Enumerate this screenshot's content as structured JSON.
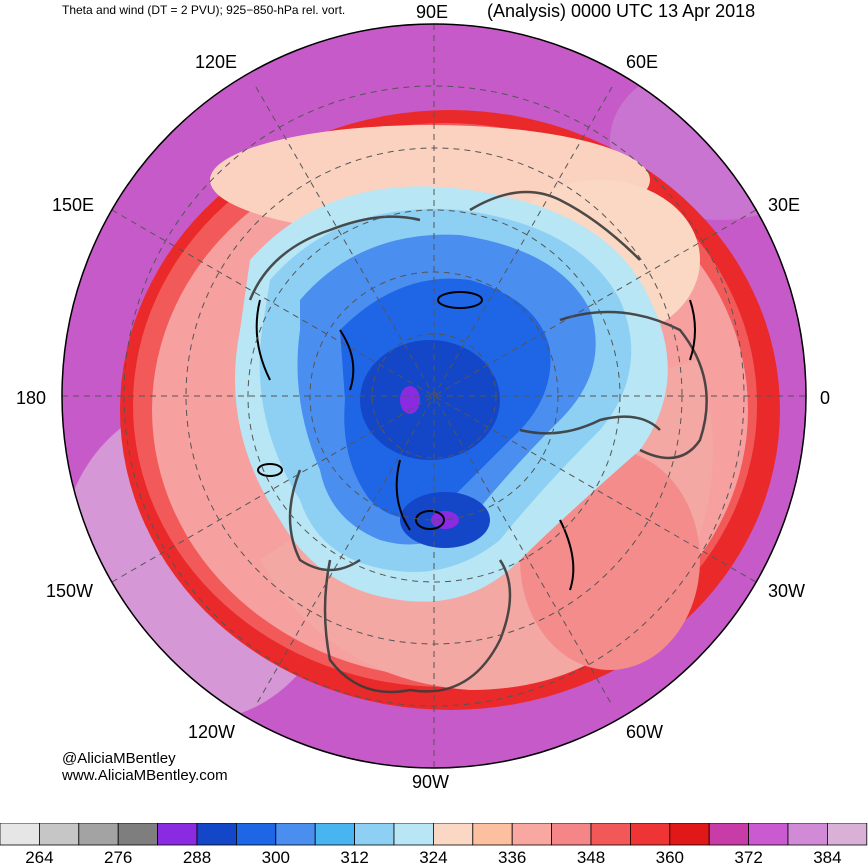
{
  "header": {
    "title_left": "Theta and wind (DT = 2 PVU); 925−850-hPa rel. vort.",
    "title_right": "(Analysis) 0000 UTC 13 Apr 2018"
  },
  "map": {
    "projection": "north-polar-stereographic",
    "lon_labels": {
      "e90": "90E",
      "e60": "60E",
      "e120": "120E",
      "e150": "150E",
      "e30": "30E",
      "zero": "0",
      "w180": "180",
      "w30": "30W",
      "w150": "150W",
      "w60": "60W",
      "w120": "120W",
      "w90": "90W"
    }
  },
  "credit": {
    "handle": "@AliciaMBentley",
    "site": "www.AliciaMBentley.com"
  },
  "colorbar": {
    "ticks": [
      "264",
      "276",
      "288",
      "300",
      "312",
      "324",
      "336",
      "348",
      "360",
      "372",
      "384"
    ],
    "colors": [
      "#e6e6e6",
      "#c6c6c6",
      "#a3a3a3",
      "#7e7e7e",
      "#8a2be2",
      "#1446c8",
      "#1e66e6",
      "#4a8ef0",
      "#48b4f0",
      "#8ed0f4",
      "#b8e6f4",
      "#fad8c4",
      "#fcc0a0",
      "#f8a8a0",
      "#f48688",
      "#f25858",
      "#ee3434",
      "#e01818",
      "#c83ca8",
      "#c95acf",
      "#d08ad6",
      "#d9b0d6"
    ]
  }
}
